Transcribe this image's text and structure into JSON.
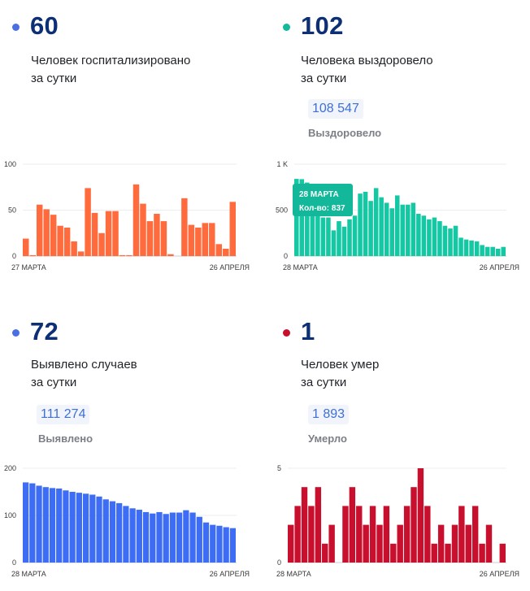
{
  "panels": {
    "hosp": {
      "value": "60",
      "line1": "Человек госпитализировано",
      "line2": "за сутки",
      "dot_color": "#4a6fe3"
    },
    "recov": {
      "value": "102",
      "line1": "Человека выздоровело",
      "line2": "за сутки",
      "total": "108 547",
      "total_label": "Выздоровело",
      "dot_color": "#12b99b"
    },
    "cases": {
      "value": "72",
      "line1": "Выявлено случаев",
      "line2": "за сутки",
      "total": "111 274",
      "total_label": "Выявлено",
      "dot_color": "#4a6fe3"
    },
    "deaths": {
      "value": "1",
      "line1": "Человек умер",
      "line2": "за сутки",
      "total": "1 893",
      "total_label": "Умерло",
      "dot_color": "#c8102e"
    }
  },
  "tooltip": {
    "date": "28 МАРТА",
    "count": "Кол-во: 837"
  },
  "chart_data": [
    {
      "type": "bar",
      "name": "hosp",
      "color": "#ff6b3d",
      "ymax": 100,
      "yticks": [
        {
          "v": 0,
          "label": "0"
        },
        {
          "v": 50,
          "label": "50"
        },
        {
          "v": 100,
          "label": "100"
        }
      ],
      "x_start": "27 МАРТА",
      "x_end": "26 АПРЕЛЯ",
      "values": [
        19,
        1,
        56,
        51,
        45,
        33,
        31,
        16,
        5,
        74,
        47,
        25,
        49,
        49,
        1,
        1,
        78,
        57,
        38,
        46,
        38,
        2,
        null,
        63,
        34,
        31,
        36,
        36,
        13,
        8,
        59
      ]
    },
    {
      "type": "bar",
      "name": "recov",
      "color": "#14c8a4",
      "ymax": 1000,
      "yticks": [
        {
          "v": 0,
          "label": "0"
        },
        {
          "v": 500,
          "label": "500"
        },
        {
          "v": 1000,
          "label": "1 K"
        }
      ],
      "x_start": "28 МАРТА",
      "x_end": "26 АПРЕЛЯ",
      "values": [
        840,
        837,
        800,
        760,
        700,
        420,
        420,
        280,
        380,
        320,
        400,
        440,
        680,
        700,
        600,
        740,
        640,
        580,
        520,
        660,
        560,
        560,
        580,
        460,
        440,
        400,
        420,
        380,
        330,
        300,
        330,
        200,
        180,
        170,
        160,
        120,
        100,
        100,
        80,
        100
      ]
    },
    {
      "type": "bar",
      "name": "cases",
      "color": "#3d6cf5",
      "ymax": 200,
      "yticks": [
        {
          "v": 0,
          "label": "0"
        },
        {
          "v": 100,
          "label": "100"
        },
        {
          "v": 200,
          "label": "200"
        }
      ],
      "x_start": "28 МАРТА",
      "x_end": "26 АПРЕЛЯ",
      "values": [
        170,
        168,
        163,
        160,
        158,
        157,
        153,
        150,
        148,
        146,
        144,
        140,
        134,
        130,
        126,
        120,
        115,
        112,
        107,
        104,
        107,
        103,
        106,
        106,
        111,
        106,
        97,
        85,
        80,
        78,
        75,
        73
      ]
    },
    {
      "type": "bar",
      "name": "deaths",
      "color": "#c8102e",
      "ymax": 5,
      "yticks": [
        {
          "v": 0,
          "label": "0"
        },
        {
          "v": 5,
          "label": "5"
        }
      ],
      "x_start": "28 МАРТА",
      "x_end": "26 АПРЕЛЯ",
      "values": [
        2,
        3,
        4,
        3,
        4,
        1,
        2,
        null,
        3,
        4,
        3,
        2,
        3,
        2,
        3,
        1,
        2,
        3,
        4,
        5,
        3,
        1,
        2,
        1,
        2,
        3,
        2,
        3,
        1,
        2,
        null,
        1
      ]
    }
  ]
}
